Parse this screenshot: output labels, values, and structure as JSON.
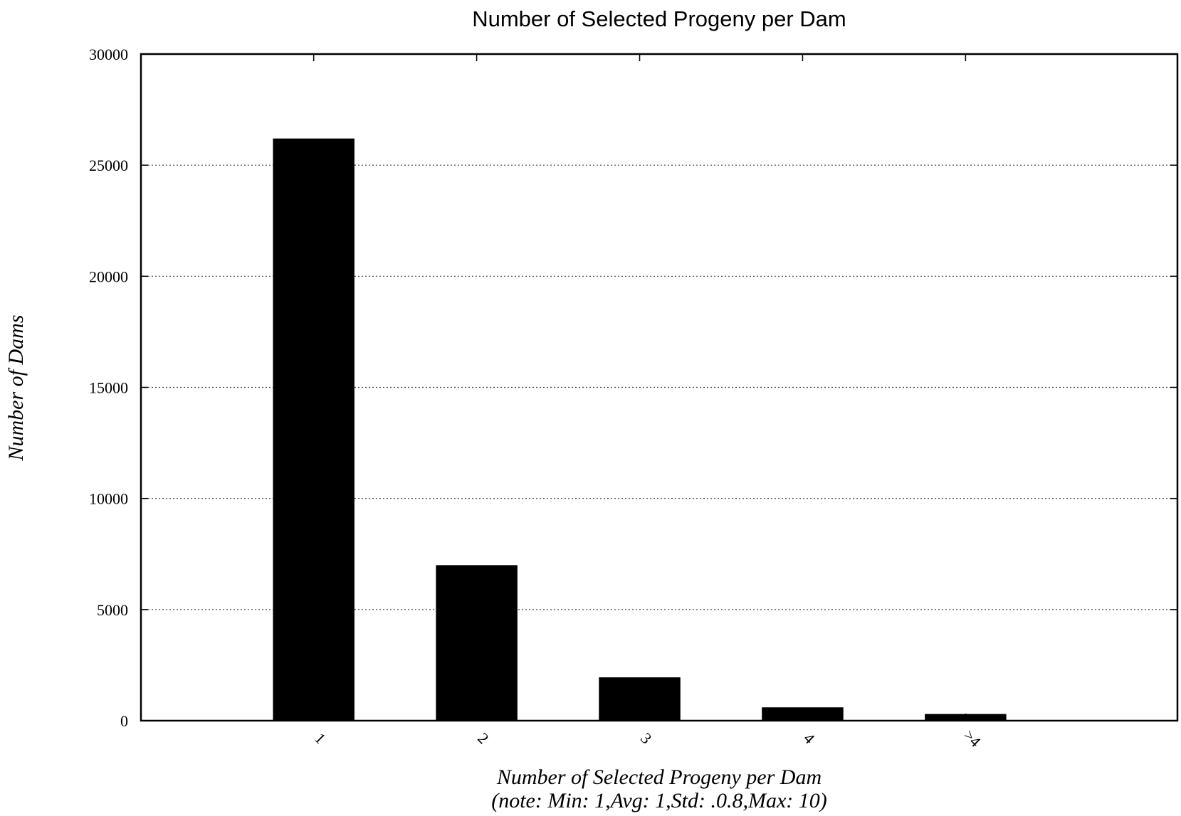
{
  "chart_data": {
    "type": "bar",
    "title": "Number of Selected Progeny per Dam",
    "xlabel": "Number of Selected Progeny per Dam",
    "xlabel_note": "(note: Min: 1,Avg: 1,Std: .0.8,Max: 10)",
    "ylabel": "Number of Dams",
    "categories": [
      "1",
      "2",
      "3",
      "4",
      ">4"
    ],
    "values": [
      26200,
      7000,
      1950,
      600,
      300
    ],
    "ylim": [
      0,
      30000
    ],
    "yticks": [
      0,
      5000,
      10000,
      15000,
      20000,
      25000,
      30000
    ],
    "grid": true,
    "legend": "none",
    "bar_color": "#000000"
  }
}
